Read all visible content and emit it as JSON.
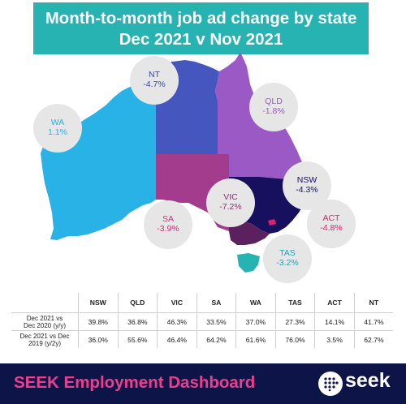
{
  "title": {
    "line1": "Month-to-month job ad change by state",
    "line2": "Dec 2021 v Nov 2021"
  },
  "states": [
    {
      "code": "WA",
      "value": "1.1%",
      "color": "#29b2e6",
      "label_color": "#29b2e6"
    },
    {
      "code": "NT",
      "value": "-4.7%",
      "color": "#4656bf",
      "label_color": "#3948a8"
    },
    {
      "code": "QLD",
      "value": "-1.8%",
      "color": "#9b59c6",
      "label_color": "#9b59c6"
    },
    {
      "code": "SA",
      "value": "-3.9%",
      "color": "#a33c8c",
      "label_color": "#c8327d"
    },
    {
      "code": "NSW",
      "value": "-4.3%",
      "color": "#17105e",
      "label_color": "#17105e"
    },
    {
      "code": "VIC",
      "value": "-7.2%",
      "color": "#5b215e",
      "label_color": "#8e2d7c"
    },
    {
      "code": "ACT",
      "value": "-4.8%",
      "color": "#e0206d",
      "label_color": "#e0206d"
    },
    {
      "code": "TAS",
      "value": "-3.2%",
      "color": "#26b3b1",
      "label_color": "#1fa3b9"
    }
  ],
  "table": {
    "headers": [
      "NSW",
      "QLD",
      "VIC",
      "SA",
      "WA",
      "TAS",
      "ACT",
      "NT"
    ],
    "rows": [
      {
        "label_line1": "Dec 2021 vs",
        "label_line2": "Dec 2020 (y/y)",
        "values": [
          "39.8%",
          "36.8%",
          "46.3%",
          "33.5%",
          "37.0%",
          "27.3%",
          "14.1%",
          "41.7%"
        ]
      },
      {
        "label_line1": "Dec 2021 vs Dec",
        "label_line2": "2019 (y/2y)",
        "values": [
          "36.0%",
          "55.6%",
          "46.4%",
          "64.2%",
          "61.6%",
          "76.0%",
          "3.5%",
          "62.7%"
        ]
      }
    ]
  },
  "footer": {
    "title": "SEEK Employment Dashboard",
    "brand": "seek",
    "title_color": "#ea3f8f",
    "background": "#0d1548"
  },
  "icons": {
    "logo": "seek-dots-icon"
  }
}
